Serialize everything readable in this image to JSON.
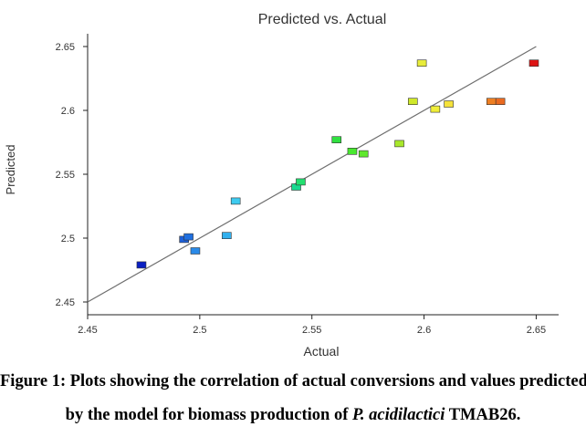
{
  "chart_data": {
    "type": "scatter",
    "title": "Predicted vs. Actual",
    "xlabel": "Actual",
    "ylabel": "Predicted",
    "xlim": [
      2.45,
      2.66
    ],
    "ylim": [
      2.44,
      2.66
    ],
    "xticks": [
      "2.45",
      "2.5",
      "2.55",
      "2.6",
      "2.65"
    ],
    "yticks": [
      "2.45",
      "2.5",
      "2.55",
      "2.6",
      "2.65"
    ],
    "reference_line": {
      "from": [
        2.45,
        2.45
      ],
      "to": [
        2.65,
        2.65
      ],
      "color": "#6e6e6e"
    },
    "points": [
      {
        "x": 2.474,
        "y": 2.479,
        "color": "#0a1fc2"
      },
      {
        "x": 2.493,
        "y": 2.499,
        "color": "#1c5fd8"
      },
      {
        "x": 2.495,
        "y": 2.501,
        "color": "#1f6fe0"
      },
      {
        "x": 2.498,
        "y": 2.49,
        "color": "#2a8ae8"
      },
      {
        "x": 2.512,
        "y": 2.502,
        "color": "#32b0ee"
      },
      {
        "x": 2.516,
        "y": 2.529,
        "color": "#3ecbf0"
      },
      {
        "x": 2.543,
        "y": 2.54,
        "color": "#19d98f"
      },
      {
        "x": 2.545,
        "y": 2.544,
        "color": "#22e070"
      },
      {
        "x": 2.561,
        "y": 2.577,
        "color": "#30e040"
      },
      {
        "x": 2.568,
        "y": 2.568,
        "color": "#48e82f"
      },
      {
        "x": 2.573,
        "y": 2.566,
        "color": "#5fe82c"
      },
      {
        "x": 2.589,
        "y": 2.574,
        "color": "#a8e82a"
      },
      {
        "x": 2.595,
        "y": 2.607,
        "color": "#cfe82a"
      },
      {
        "x": 2.599,
        "y": 2.637,
        "color": "#e8ec3a"
      },
      {
        "x": 2.605,
        "y": 2.601,
        "color": "#f0ee38"
      },
      {
        "x": 2.611,
        "y": 2.605,
        "color": "#f5e23a"
      },
      {
        "x": 2.63,
        "y": 2.607,
        "color": "#ee7f22"
      },
      {
        "x": 2.634,
        "y": 2.607,
        "color": "#ea6a20"
      },
      {
        "x": 2.649,
        "y": 2.637,
        "color": "#dd1414"
      }
    ]
  },
  "caption": {
    "line1": "Figure 1: Plots showing the correlation of actual conversions and values predicted",
    "line2_prefix": "by the model for biomass production of ",
    "line2_italic": "P. acidilactici",
    "line2_suffix": " TMAB26."
  }
}
